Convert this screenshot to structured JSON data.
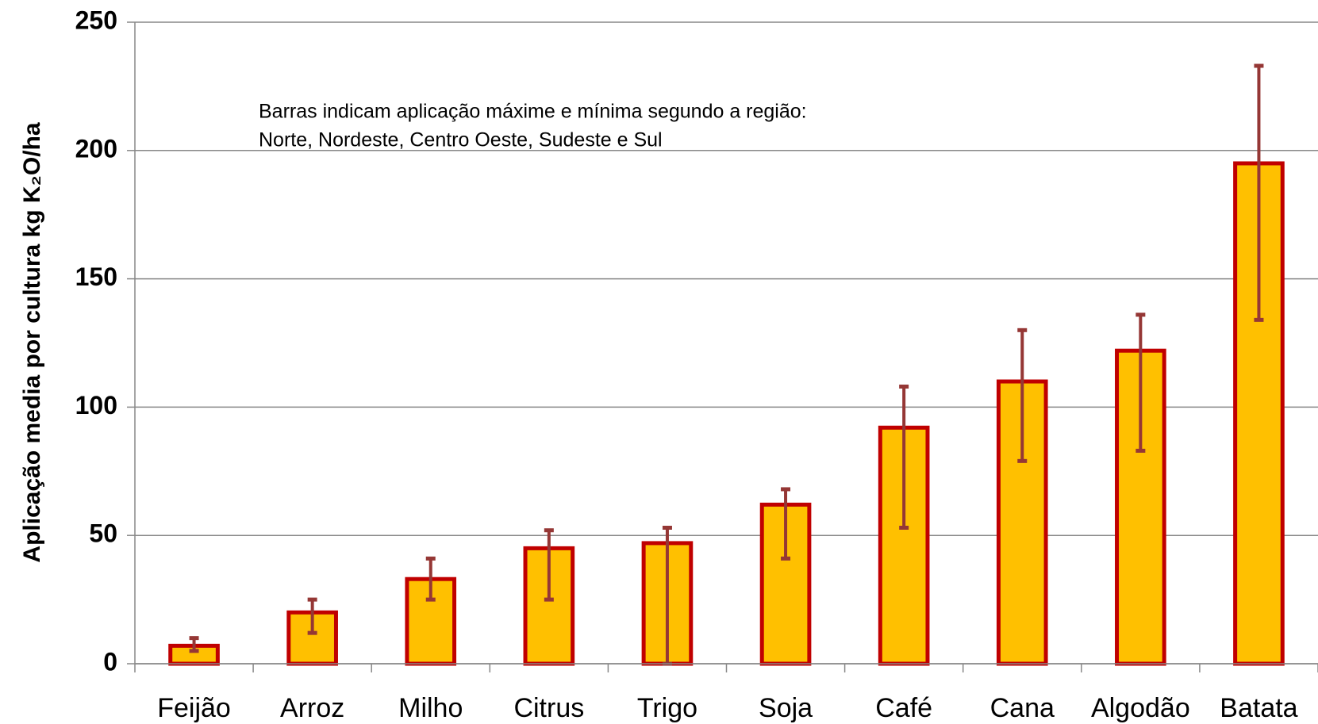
{
  "chart_data": {
    "type": "bar",
    "y_label": "Aplicação media por cultura kg K₂O/ha",
    "annotation": [
      "Barras indicam aplicação máxime e mínima segundo a região:",
      "Norte, Nordeste, Centro Oeste, Sudeste e Sul"
    ],
    "categories": [
      "Feijão",
      "Arroz",
      "Milho",
      "Citrus",
      "Trigo",
      "Soja",
      "Café",
      "Cana",
      "Algodão",
      "Batata"
    ],
    "values": [
      7,
      20,
      33,
      45,
      47,
      62,
      92,
      110,
      122,
      195
    ],
    "max": [
      10,
      25,
      41,
      52,
      53,
      68,
      108,
      130,
      136,
      233
    ],
    "min": [
      5,
      12,
      25,
      25,
      0,
      41,
      53,
      79,
      83,
      134
    ],
    "color": "#ffc000",
    "edge_color": "#c00000",
    "error_color": "#953735",
    "ylim": [
      0,
      250
    ],
    "yticks": [
      0,
      50,
      100,
      150,
      200,
      250
    ],
    "grid": true
  }
}
